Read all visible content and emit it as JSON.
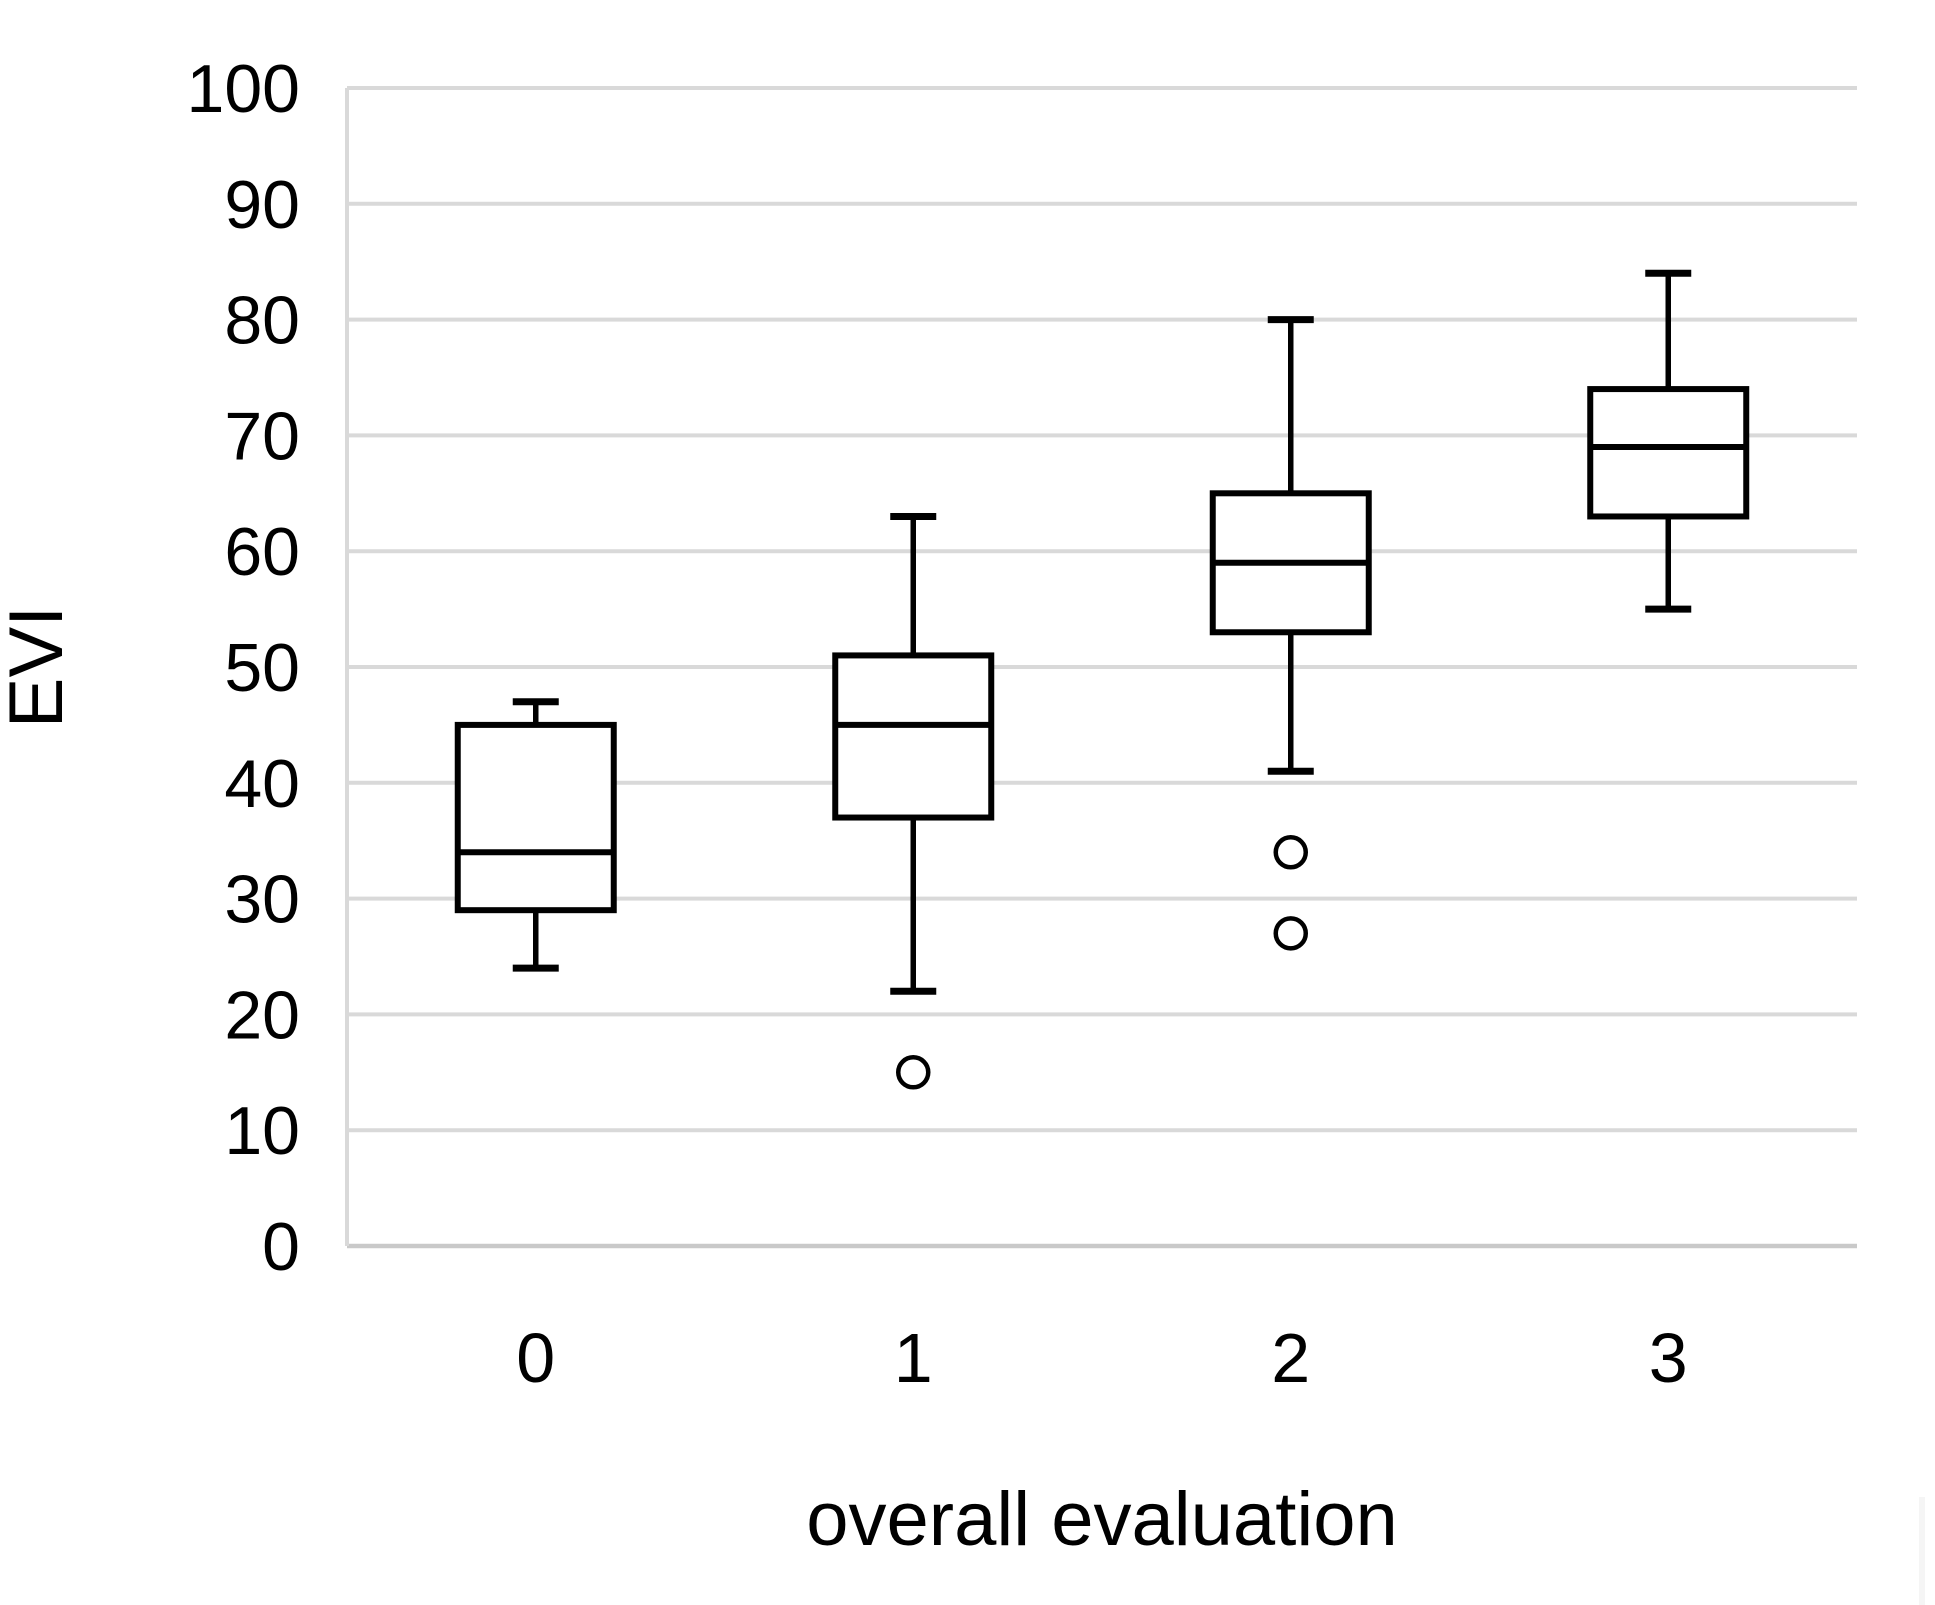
{
  "chart_data": {
    "type": "boxplot",
    "title": "",
    "xlabel": "overall evaluation",
    "ylabel": "EVI",
    "categories": [
      "0",
      "1",
      "2",
      "3"
    ],
    "y_ticks": [
      0,
      10,
      20,
      30,
      40,
      50,
      60,
      70,
      80,
      90,
      100
    ],
    "ylim": [
      0,
      100
    ],
    "grid": "horizontal-only",
    "legend": "none",
    "series": [
      {
        "category": "0",
        "whisker_low": 24,
        "q1": 29,
        "median": 34,
        "q3": 45,
        "whisker_high": 47,
        "outliers": []
      },
      {
        "category": "1",
        "whisker_low": 22,
        "q1": 37,
        "median": 45,
        "q3": 51,
        "whisker_high": 63,
        "outliers": [
          15
        ]
      },
      {
        "category": "2",
        "whisker_low": 41,
        "q1": 53,
        "median": 59,
        "q3": 65,
        "whisker_high": 80,
        "outliers": [
          34,
          27
        ]
      },
      {
        "category": "3",
        "whisker_low": 55,
        "q1": 63,
        "median": 69,
        "q3": 74,
        "whisker_high": 84,
        "outliers": []
      }
    ],
    "colors": {
      "background": "#ffffff",
      "grid": "#d9d9d9",
      "baseline_axis": "#c9c9c9",
      "box_stroke": "#000000",
      "box_fill": "#ffffff",
      "text": "#000000"
    }
  }
}
